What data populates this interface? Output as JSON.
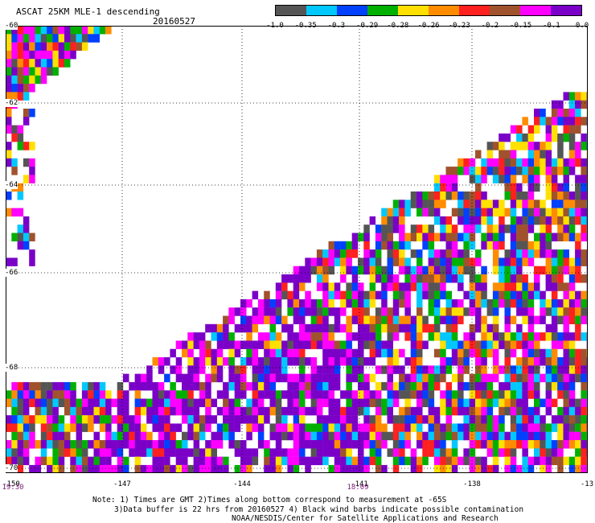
{
  "header": {
    "title": "ASCAT 25KM MLE-1 descending",
    "date": "20160527"
  },
  "colorbar": {
    "colors": [
      "#555555",
      "#00c8ff",
      "#0040ff",
      "#00b000",
      "#ffe000",
      "#ff8c00",
      "#ff2020",
      "#a0522d",
      "#ff00ff",
      "#7a00c8"
    ],
    "labels": [
      "-1.0",
      "-0.35",
      "-0.3",
      "-0.29",
      "-0.28",
      "-0.26",
      "-0.23",
      "-0.2",
      "-0.15",
      "-0.1",
      "0.0"
    ]
  },
  "axes": {
    "lat_labels": [
      "-60",
      "-62",
      "-64",
      "-66",
      "-68",
      "-70"
    ],
    "lon_labels": [
      "-150",
      "-147",
      "-144",
      "-141",
      "-138",
      "-13"
    ],
    "time_labels": [
      "19:30",
      "18:09"
    ]
  },
  "notes": {
    "line1": "Note: 1) Times are GMT 2)Times along bottom correspond to measurement at -65S",
    "line2": "3)Data buffer is 22 hrs from 20160527 4) Black wind barbs indicate possible contamination",
    "line3": "NOAA/NESDIS/Center for Satellite Applications and Research"
  }
}
